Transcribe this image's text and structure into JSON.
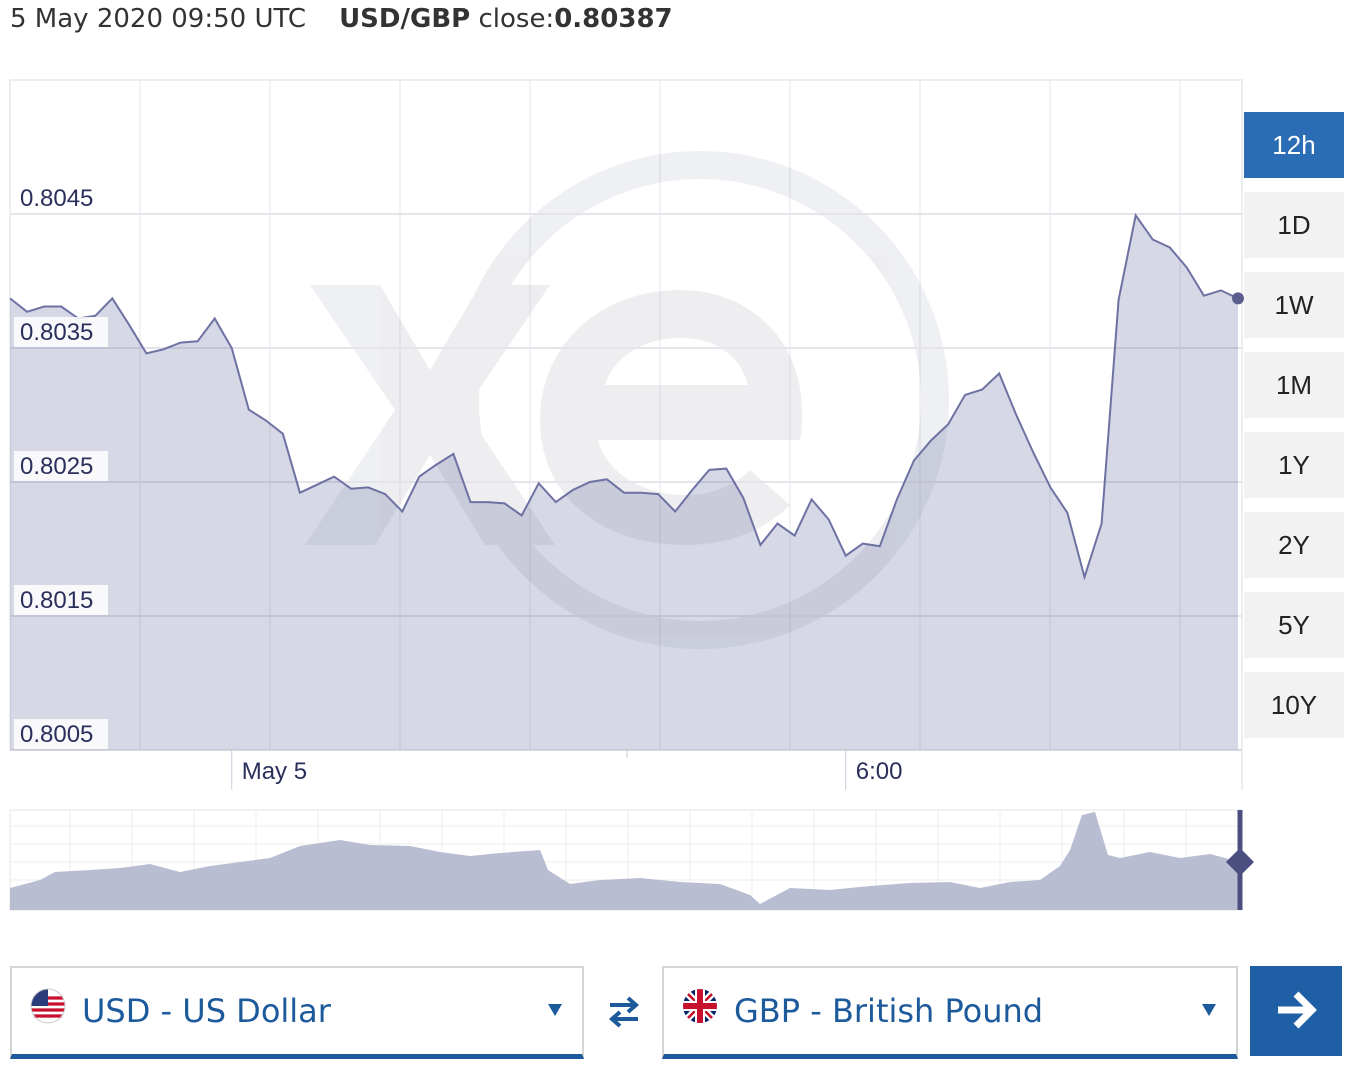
{
  "header": {
    "timestamp": "5 May 2020 09:50 UTC",
    "pair": "USD/GBP",
    "close_label": "close:",
    "close_value": 0.80387
  },
  "chart_data": {
    "type": "line",
    "categories": [
      null,
      null,
      null,
      null,
      null,
      null,
      null,
      null,
      null,
      null,
      null,
      null,
      null,
      "May 5",
      null,
      null,
      null,
      null,
      null,
      null,
      null,
      null,
      null,
      null,
      null,
      null,
      null,
      null,
      null,
      null,
      null,
      null,
      null,
      null,
      null,
      null,
      null,
      null,
      null,
      null,
      null,
      null,
      null,
      null,
      null,
      null,
      null,
      null,
      null,
      "6:00",
      null,
      null,
      null,
      null,
      null,
      null,
      null,
      null,
      null,
      null,
      null,
      null,
      null,
      null,
      null,
      null,
      null,
      null,
      null,
      null,
      null,
      null,
      null
    ],
    "values": [
      0.80387,
      0.80377,
      0.80381,
      0.80381,
      0.80372,
      0.80374,
      0.80387,
      0.80367,
      0.80346,
      0.80349,
      0.80354,
      0.80355,
      0.80372,
      0.8035,
      0.80304,
      0.80296,
      0.80286,
      0.80242,
      0.80248,
      0.80254,
      0.80245,
      0.80246,
      0.80241,
      0.80228,
      0.80254,
      0.80263,
      0.80271,
      0.80235,
      0.80235,
      0.80234,
      0.80225,
      0.80249,
      0.80235,
      0.80244,
      0.8025,
      0.80252,
      0.80242,
      0.80242,
      0.80241,
      0.80228,
      0.80244,
      0.80259,
      0.8026,
      0.80238,
      0.80203,
      0.80219,
      0.8021,
      0.80237,
      0.80222,
      0.80195,
      0.80204,
      0.80202,
      0.80237,
      0.80266,
      0.80281,
      0.80293,
      0.80315,
      0.80319,
      0.80331,
      0.803,
      0.80272,
      0.80246,
      0.80227,
      0.80179,
      0.80219,
      0.80386,
      0.80449,
      0.80431,
      0.80425,
      0.8041,
      0.80389,
      0.80393,
      0.80387
    ],
    "color": "#6d72a3",
    "ylim": [
      0.8005,
      0.8055
    ],
    "yticks": [
      0.8005,
      0.8015,
      0.8025,
      0.8035,
      0.8045
    ],
    "grid": true
  },
  "range_buttons": [
    "12h",
    "1D",
    "1W",
    "1M",
    "1Y",
    "2Y",
    "5Y",
    "10Y"
  ],
  "converter": {
    "from": "USD - US Dollar",
    "to": "GBP - British Pound"
  }
}
